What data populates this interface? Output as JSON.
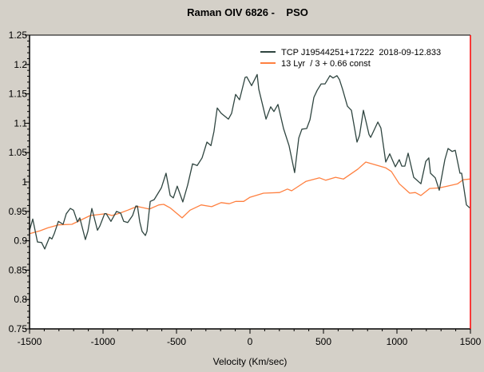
{
  "chart_data": {
    "type": "line",
    "title": "Raman OIV 6826 -    PSO",
    "xlabel": "Velocity (Km/sec)",
    "ylabel": "",
    "xlim": [
      -1500,
      1500
    ],
    "ylim": [
      0.75,
      1.25
    ],
    "xticks": [
      -1500,
      -1000,
      -500,
      0,
      500,
      1000,
      1500
    ],
    "xtick_labels": [
      "-1500",
      "-1000",
      "-500",
      "0",
      "500",
      "1000",
      "1500"
    ],
    "yticks": [
      0.75,
      0.8,
      0.85,
      0.9,
      0.95,
      1,
      1.05,
      1.1,
      1.15,
      1.2,
      1.25
    ],
    "ytick_labels": [
      "0.75",
      "0.8",
      "0.85",
      "0.9",
      "0.95",
      "1",
      "1.05",
      "1.1",
      "1.15",
      "1.2",
      "1.25"
    ],
    "grid": false,
    "legend_position": "top-right",
    "series": [
      {
        "name": "TCP J19544251+17222  2018-09-12.833",
        "color": "#2f4540",
        "x": [
          -1500,
          -1478,
          -1446,
          -1418,
          -1397,
          -1364,
          -1348,
          -1332,
          -1304,
          -1272,
          -1250,
          -1223,
          -1201,
          -1174,
          -1158,
          -1120,
          -1103,
          -1076,
          -1038,
          -1022,
          -989,
          -978,
          -946,
          -908,
          -880,
          -859,
          -832,
          -799,
          -777,
          -766,
          -750,
          -734,
          -712,
          -701,
          -679,
          -652,
          -603,
          -571,
          -543,
          -522,
          -495,
          -457,
          -424,
          -391,
          -359,
          -326,
          -293,
          -266,
          -245,
          -223,
          -196,
          -147,
          -125,
          -98,
          -71,
          -33,
          -22,
          11,
          49,
          60,
          87,
          109,
          141,
          163,
          190,
          228,
          266,
          304,
          332,
          353,
          386,
          408,
          435,
          457,
          484,
          511,
          544,
          565,
          592,
          609,
          630,
          663,
          690,
          728,
          745,
          772,
          810,
          821,
          870,
          891,
          924,
          951,
          989,
          1016,
          1033,
          1054,
          1076,
          1114,
          1163,
          1196,
          1217,
          1228,
          1261,
          1288,
          1326,
          1348,
          1375,
          1397,
          1429,
          1440,
          1473,
          1495
        ],
        "y": [
          0.918,
          0.937,
          0.898,
          0.897,
          0.886,
          0.906,
          0.903,
          0.912,
          0.933,
          0.928,
          0.946,
          0.955,
          0.952,
          0.932,
          0.939,
          0.902,
          0.916,
          0.955,
          0.918,
          0.925,
          0.946,
          0.946,
          0.933,
          0.95,
          0.947,
          0.933,
          0.931,
          0.943,
          0.959,
          0.959,
          0.932,
          0.916,
          0.909,
          0.916,
          0.967,
          0.97,
          0.99,
          1.015,
          0.977,
          0.973,
          0.993,
          0.966,
          0.995,
          1.031,
          1.028,
          1.041,
          1.068,
          1.062,
          1.086,
          1.126,
          1.117,
          1.107,
          1.117,
          1.149,
          1.14,
          1.178,
          1.179,
          1.164,
          1.183,
          1.158,
          1.13,
          1.107,
          1.128,
          1.12,
          1.132,
          1.091,
          1.062,
          1.016,
          1.075,
          1.09,
          1.091,
          1.106,
          1.144,
          1.156,
          1.167,
          1.167,
          1.181,
          1.177,
          1.181,
          1.174,
          1.158,
          1.129,
          1.122,
          1.068,
          1.079,
          1.122,
          1.081,
          1.076,
          1.102,
          1.092,
          1.034,
          1.048,
          1.026,
          1.038,
          1.027,
          1.027,
          1.049,
          1.008,
          0.997,
          1.035,
          1.041,
          1.015,
          1.007,
          0.986,
          1.038,
          1.057,
          1.052,
          1.054,
          1.015,
          1.015,
          0.961,
          0.956
        ]
      },
      {
        "name": "13 Lyr  / 3 + 0.66 const",
        "color": "#ff8040",
        "x": [
          -1500,
          -1429,
          -1375,
          -1304,
          -1212,
          -1087,
          -978,
          -940,
          -886,
          -832,
          -793,
          -761,
          -685,
          -620,
          -587,
          -543,
          -462,
          -408,
          -332,
          -261,
          -196,
          -141,
          -98,
          -43,
          0,
          92,
          201,
          255,
          283,
          380,
          473,
          516,
          582,
          636,
          734,
          788,
          842,
          924,
          962,
          1016,
          1087,
          1125,
          1163,
          1223,
          1288,
          1342,
          1413,
          1451,
          1495
        ],
        "y": [
          0.912,
          0.917,
          0.922,
          0.927,
          0.928,
          0.943,
          0.946,
          0.943,
          0.947,
          0.952,
          0.956,
          0.958,
          0.954,
          0.961,
          0.962,
          0.956,
          0.939,
          0.952,
          0.961,
          0.958,
          0.965,
          0.963,
          0.967,
          0.967,
          0.974,
          0.981,
          0.982,
          0.988,
          0.985,
          1.001,
          1.007,
          1.003,
          1.008,
          1.005,
          1.022,
          1.034,
          1.03,
          1.024,
          1.018,
          0.997,
          0.981,
          0.982,
          0.977,
          0.989,
          0.99,
          0.993,
          0.997,
          1.004,
          1.005
        ]
      }
    ]
  }
}
